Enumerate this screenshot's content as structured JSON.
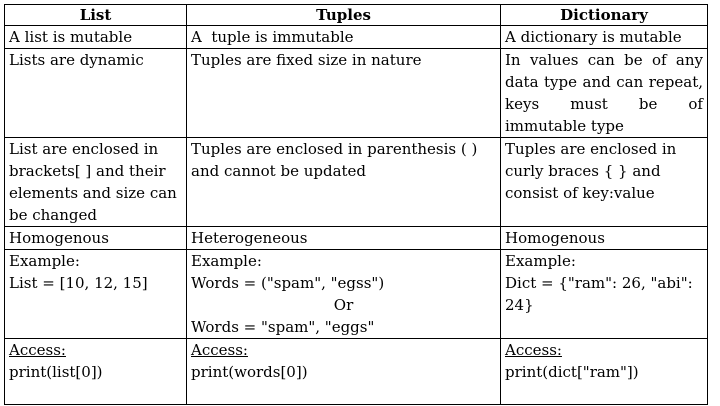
{
  "headers": [
    "List",
    "Tuples",
    "Dictionary"
  ],
  "rows": [
    {
      "list": "A list is mutable",
      "tuples": "A  tuple is immutable",
      "dict": "A dictionary is mutable"
    },
    {
      "list": "Lists are dynamic",
      "tuples": "Tuples are fixed size in nature",
      "dict": "In values can be of any data type and can repeat, keys must be of immutable type"
    },
    {
      "list": "List are enclosed in brackets[ ] and their elements and size can be changed",
      "tuples": "Tuples are enclosed in parenthesis ( ) and cannot be updated",
      "dict": "Tuples are enclosed in curly braces { } and consist of key:value"
    },
    {
      "list": "Homogenous",
      "tuples": "Heterogeneous",
      "dict": "Homogenous"
    }
  ],
  "example": {
    "label": "Example:",
    "list_code": "List = [10, 12, 15]",
    "tuples_code_1": "Words = (\"spam\", \"egss\")",
    "tuples_or": "Or",
    "tuples_code_2": "Words = \"spam\", \"eggs\"",
    "dict_code": "Dict = {\"ram\": 26, \"abi\": 24}"
  },
  "access": {
    "label": "Access:",
    "list_code": "print(list[0])",
    "tuples_code": "print(words[0])",
    "dict_code": "print(dict[\"ram\"])"
  }
}
